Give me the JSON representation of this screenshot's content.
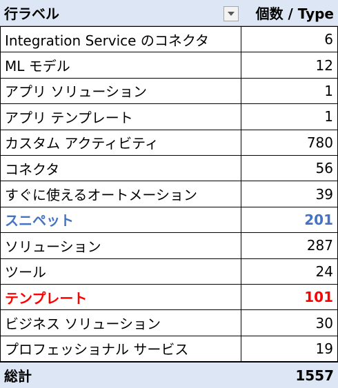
{
  "pivot": {
    "header": {
      "row_label": "行ラベル",
      "value_label": "個数 / Type",
      "filter_icon": "chevron-down-icon"
    },
    "rows": [
      {
        "label": "Integration Service のコネクタ",
        "value": "6",
        "highlight": ""
      },
      {
        "label": "ML モデル",
        "value": "12",
        "highlight": ""
      },
      {
        "label": "アプリ ソリューション",
        "value": "1",
        "highlight": ""
      },
      {
        "label": "アプリ テンプレート",
        "value": "1",
        "highlight": ""
      },
      {
        "label": "カスタム アクティビティ",
        "value": "780",
        "highlight": ""
      },
      {
        "label": "コネクタ",
        "value": "56",
        "highlight": ""
      },
      {
        "label": "すぐに使えるオートメーション",
        "value": "39",
        "highlight": ""
      },
      {
        "label": "スニペット",
        "value": "201",
        "highlight": "blue"
      },
      {
        "label": "ソリューション",
        "value": "287",
        "highlight": ""
      },
      {
        "label": "ツール",
        "value": "24",
        "highlight": ""
      },
      {
        "label": "テンプレート",
        "value": "101",
        "highlight": "red"
      },
      {
        "label": "ビジネス ソリューション",
        "value": "30",
        "highlight": ""
      },
      {
        "label": "プロフェッショナル サービス",
        "value": "19",
        "highlight": ""
      }
    ],
    "total": {
      "label": "総計",
      "value": "1557"
    },
    "colors": {
      "header_bg": "#dde6f4",
      "highlight_blue": "#4472c4",
      "highlight_red": "#ff0000"
    }
  }
}
